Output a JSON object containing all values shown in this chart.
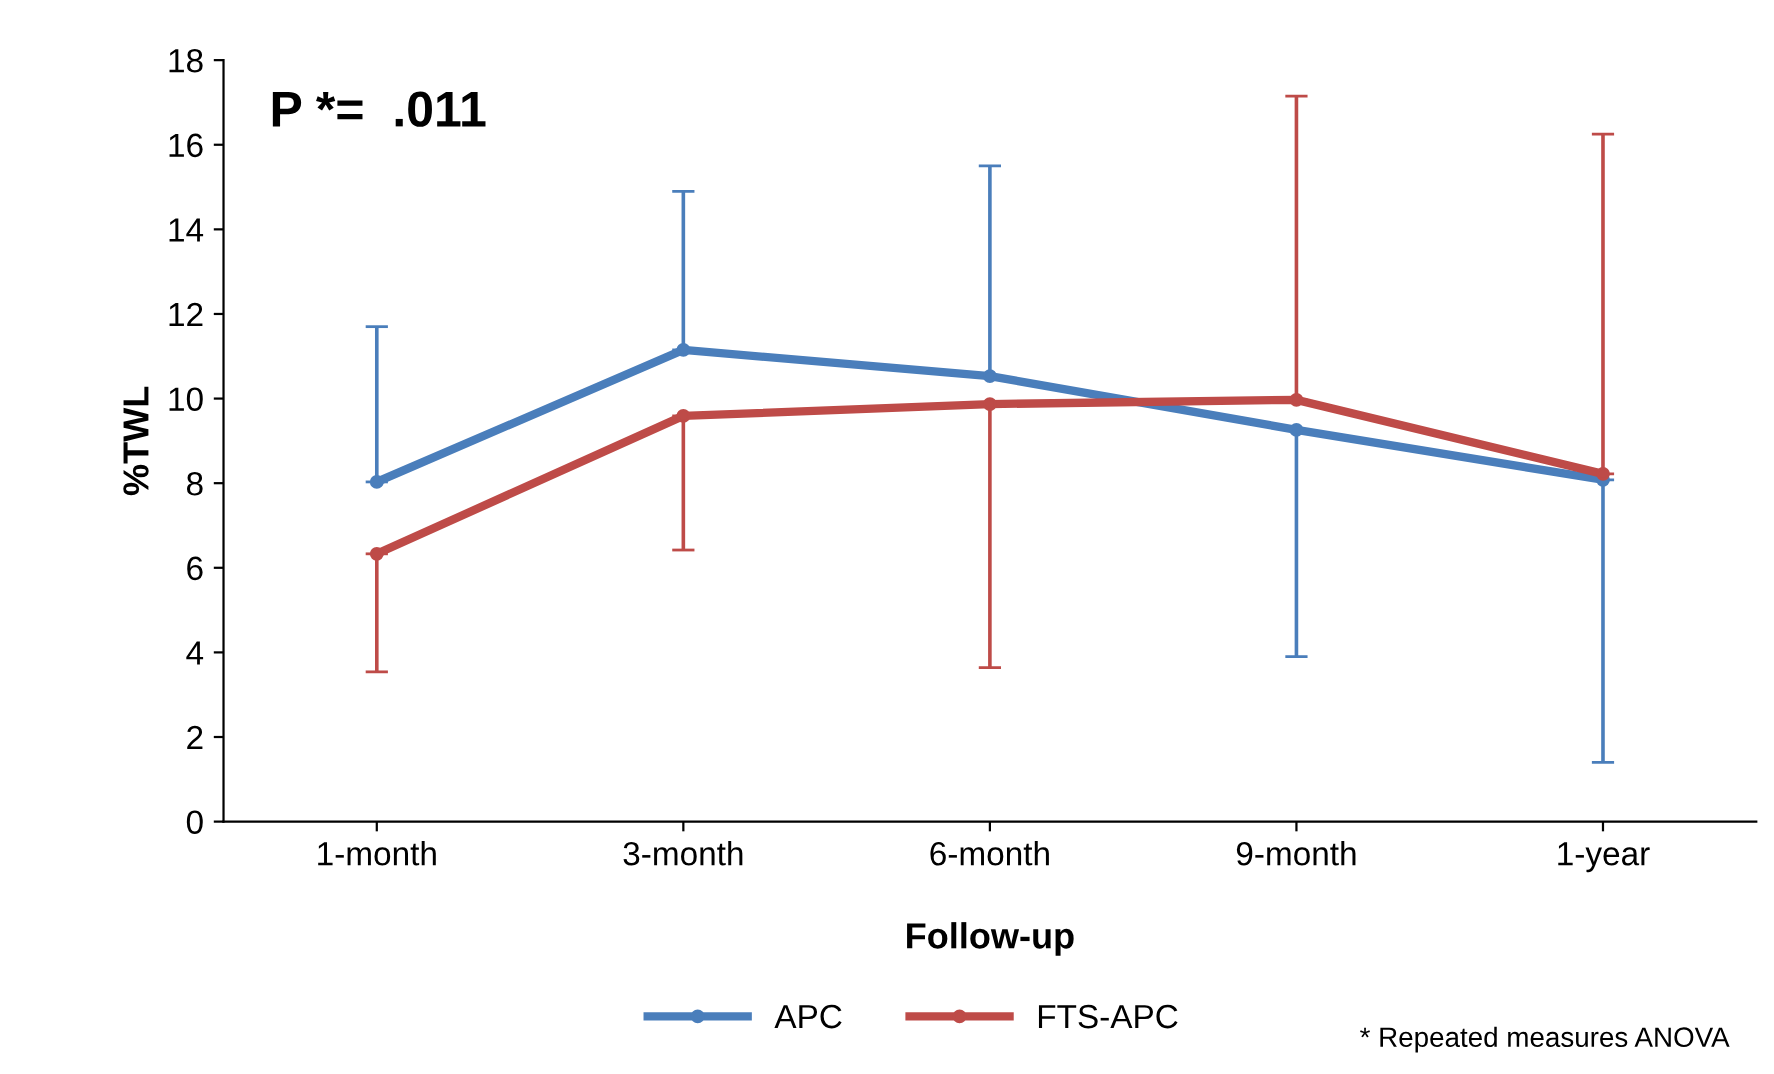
{
  "chart_data": {
    "type": "line",
    "xlabel": "Follow-up",
    "ylabel": "%TWL",
    "categories": [
      "1-month",
      "3-month",
      "6-month",
      "9-month",
      "1-year"
    ],
    "series": [
      {
        "name": "APC",
        "color": "#4a7ebb",
        "values": [
          8.03,
          11.15,
          10.53,
          9.26,
          8.08
        ],
        "errors": [
          [
            8.03,
            11.7
          ],
          [
            11.15,
            14.9
          ],
          [
            10.53,
            15.5
          ],
          [
            3.9,
            9.26
          ],
          [
            1.4,
            8.08
          ]
        ]
      },
      {
        "name": "FTS-APC",
        "color": "#be4b48",
        "values": [
          6.33,
          9.59,
          9.87,
          9.97,
          8.22
        ],
        "errors": [
          [
            3.54,
            6.33
          ],
          [
            6.42,
            9.59
          ],
          [
            3.64,
            9.87
          ],
          [
            9.97,
            17.15
          ],
          [
            8.22,
            16.25
          ]
        ]
      }
    ],
    "ylim": [
      0,
      18
    ],
    "yticks": [
      0,
      2,
      4,
      6,
      8,
      10,
      12,
      14,
      16,
      18
    ],
    "grid": false,
    "legend": "bottom",
    "marker": "circle",
    "line_style": "solid",
    "annotations": [
      "P *=  .011",
      "* Repeated measures ANOVA"
    ]
  }
}
